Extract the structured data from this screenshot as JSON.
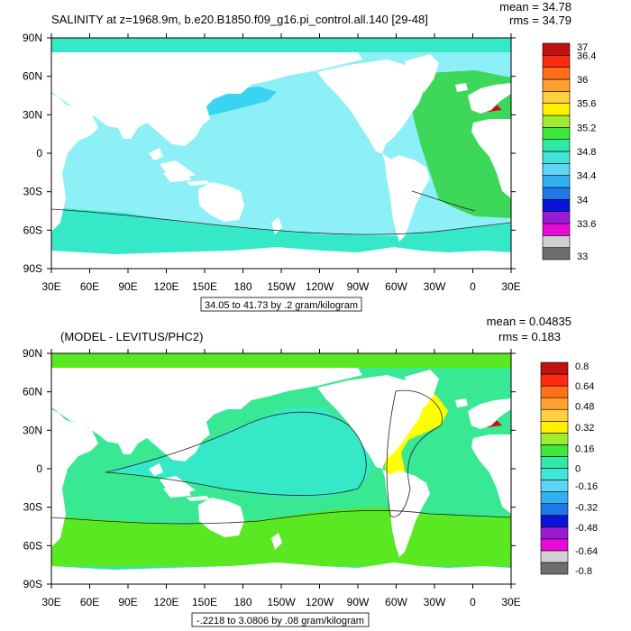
{
  "colors": {
    "ocean_base": "#8ef0f7",
    "ocean_fresh": "#38d4f0",
    "ocean_mid": "#35e8c8",
    "atlantic_salty": "#3dd85a",
    "med_salty": "#c01515",
    "land": "#ffffff",
    "diff_base": "#38e892",
    "diff_positive": "#5ae822",
    "diff_high": "#ffff00",
    "diff_orange": "#ffc020"
  },
  "chart_data": [
    {
      "type": "heatmap",
      "title": "SALINITY at z=1968.9m, b.e20.B1850.f09_g16.pi_control.all.140 [29-48]",
      "stats": {
        "mean": "mean = 34.78",
        "rms": "rms = 34.79"
      },
      "x_ticks": [
        "30E",
        "60E",
        "90E",
        "120E",
        "150E",
        "180",
        "150W",
        "120W",
        "90W",
        "60W",
        "30W",
        "0",
        "30E"
      ],
      "y_ticks": [
        "90N",
        "60N",
        "30N",
        "0",
        "30S",
        "60S",
        "90S"
      ],
      "xlim": [
        30,
        390
      ],
      "ylim": [
        -90,
        90
      ],
      "subtitle": "34.05 to 41.73 by .2 gram/kilogram",
      "colorbar": {
        "colors": [
          "#6e6e6e",
          "#d0d0d0",
          "#e80ad8",
          "#9b1ad4",
          "#0a14d8",
          "#1f78e8",
          "#30b0f0",
          "#60d4f4",
          "#40e4d8",
          "#30e8a8",
          "#3ee83c",
          "#a0ec30",
          "#fff000",
          "#ffd040",
          "#ffa030",
          "#ff7018",
          "#ff2a10",
          "#c01010"
        ],
        "labels": [
          "33",
          "33.6",
          "34",
          "34.4",
          "34.8",
          "35.2",
          "35.6",
          "36",
          "36.4",
          "37"
        ]
      }
    },
    {
      "type": "heatmap",
      "title": "(MODEL - LEVITUS/PHC2)",
      "stats": {
        "mean": "mean = 0.04835",
        "rms": "rms = 0.183"
      },
      "x_ticks": [
        "30E",
        "60E",
        "90E",
        "120E",
        "150E",
        "180",
        "150W",
        "120W",
        "90W",
        "60W",
        "30W",
        "0",
        "30E"
      ],
      "y_ticks": [
        "90N",
        "60N",
        "30N",
        "0",
        "30S",
        "60S",
        "90S"
      ],
      "xlim": [
        30,
        390
      ],
      "ylim": [
        -90,
        90
      ],
      "subtitle": "-.2218 to 3.0806 by .08 gram/kilogram",
      "colorbar": {
        "colors": [
          "#6e6e6e",
          "#d0d0d0",
          "#e80ad8",
          "#9b1ad4",
          "#0a14d8",
          "#1f78e8",
          "#30b0f0",
          "#60d4f4",
          "#40e4d8",
          "#30e8a8",
          "#3ee83c",
          "#a0ec30",
          "#fff000",
          "#ffd040",
          "#ffa030",
          "#ff7018",
          "#ff2a10",
          "#c01010"
        ],
        "labels": [
          "-0.8",
          "-0.64",
          "-0.48",
          "-0.32",
          "-0.16",
          "0",
          "0.16",
          "0.32",
          "0.48",
          "0.64",
          "0.8"
        ]
      }
    }
  ]
}
